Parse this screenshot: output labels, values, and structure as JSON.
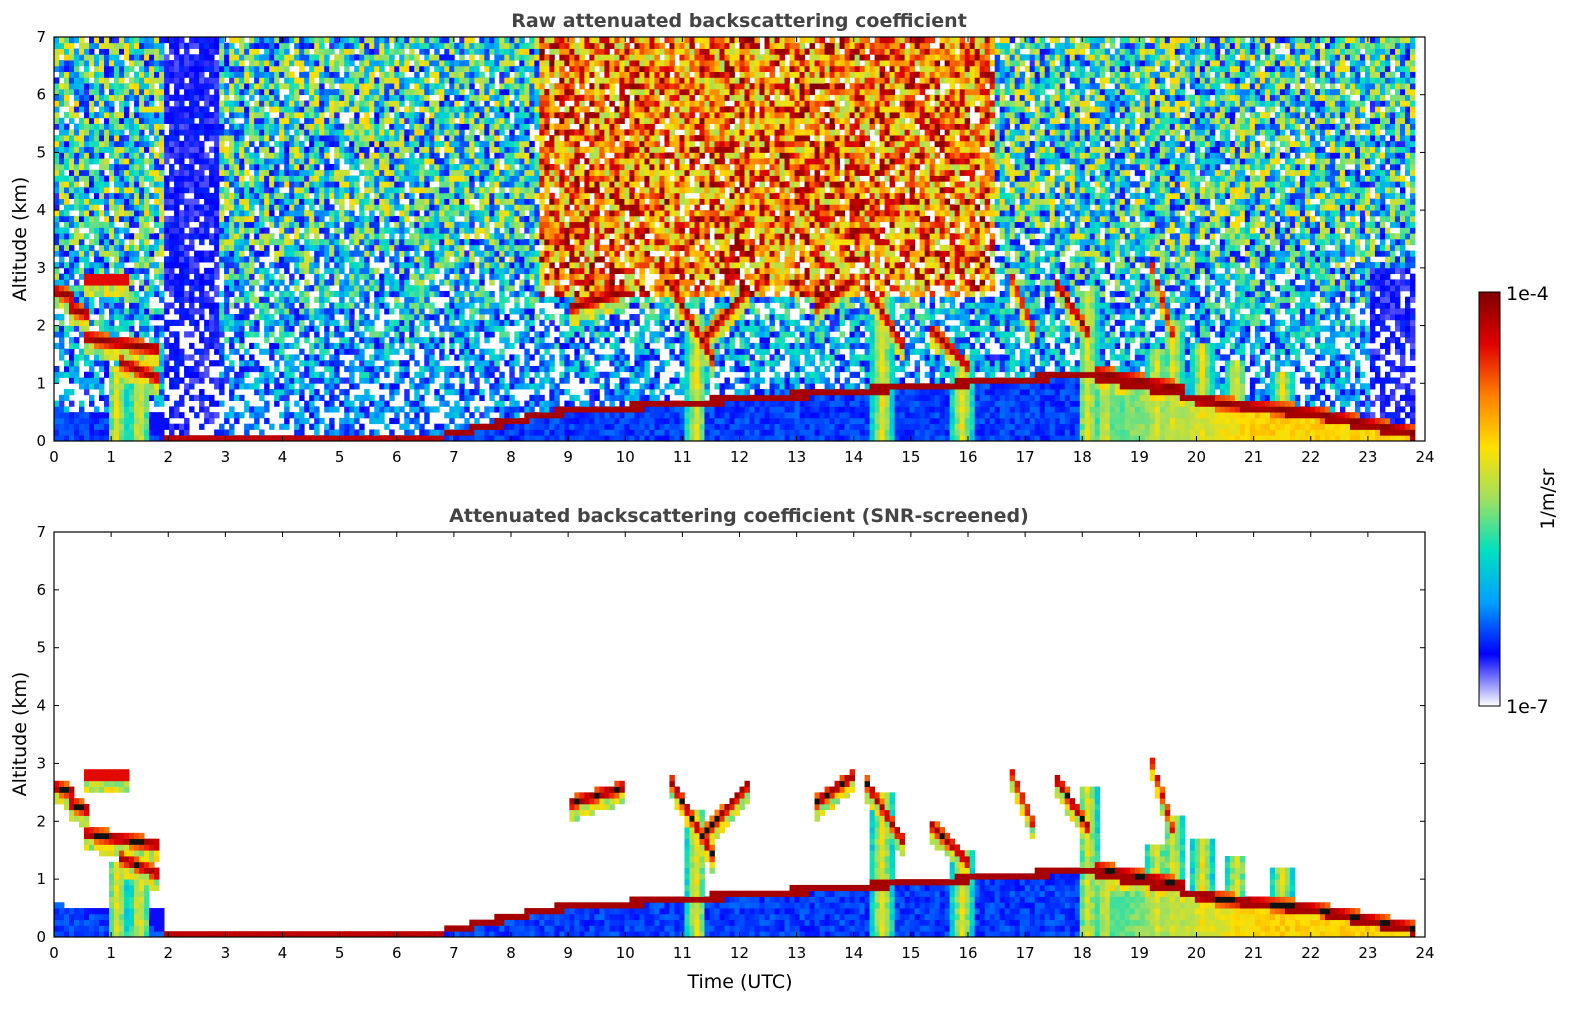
{
  "chart_data": [
    {
      "type": "heatmap",
      "title": "Raw attenuated backscattering coefficient",
      "xlabel": "",
      "ylabel": "Altitude (km)",
      "xlim": [
        0,
        24
      ],
      "ylim": [
        0,
        7
      ],
      "x_ticks": [
        "0",
        "1",
        "2",
        "3",
        "4",
        "5",
        "6",
        "7",
        "8",
        "9",
        "10",
        "11",
        "12",
        "13",
        "14",
        "15",
        "16",
        "17",
        "18",
        "19",
        "20",
        "21",
        "22",
        "23",
        "24"
      ],
      "y_ticks": [
        "0",
        "1",
        "2",
        "3",
        "4",
        "5",
        "6",
        "7"
      ],
      "screened": false,
      "features": {
        "boundary_layer_top_km": [
          {
            "t": 0.0,
            "h": 0.6
          },
          {
            "t": 1.9,
            "h": 0.1
          },
          {
            "t": 6.8,
            "h": 0.1
          },
          {
            "t": 8.8,
            "h": 0.5
          },
          {
            "t": 18.0,
            "h": 1.15
          },
          {
            "t": 19.0,
            "h": 0.95
          },
          {
            "t": 20.5,
            "h": 0.65
          },
          {
            "t": 22.0,
            "h": 0.45
          },
          {
            "t": 23.8,
            "h": 0.1
          }
        ],
        "cloud_layers": [
          {
            "t0": 0.0,
            "t1": 0.35,
            "h0": 2.6,
            "h1": 2.5,
            "strength": 1.0
          },
          {
            "t0": 0.3,
            "t1": 0.6,
            "h0": 2.3,
            "h1": 2.2,
            "strength": 1.0
          },
          {
            "t0": 0.5,
            "t1": 1.3,
            "h0": 2.8,
            "h1": 2.8,
            "strength": 0.8
          },
          {
            "t0": 0.5,
            "t1": 1.8,
            "h0": 1.8,
            "h1": 1.6,
            "strength": 1.0
          },
          {
            "t0": 1.1,
            "t1": 1.8,
            "h0": 1.4,
            "h1": 1.1,
            "strength": 0.9
          },
          {
            "t0": 9.0,
            "t1": 10.0,
            "h0": 2.3,
            "h1": 2.6,
            "strength": 1.0
          },
          {
            "t0": 10.8,
            "t1": 11.6,
            "h0": 2.7,
            "h1": 1.3,
            "strength": 1.0
          },
          {
            "t0": 11.4,
            "t1": 12.2,
            "h0": 1.8,
            "h1": 2.7,
            "strength": 1.0
          },
          {
            "t0": 13.3,
            "t1": 14.0,
            "h0": 2.3,
            "h1": 2.8,
            "strength": 1.0
          },
          {
            "t0": 14.2,
            "t1": 14.9,
            "h0": 2.7,
            "h1": 1.6,
            "strength": 0.9
          },
          {
            "t0": 15.3,
            "t1": 16.0,
            "h0": 2.0,
            "h1": 1.3,
            "strength": 0.9
          },
          {
            "t0": 16.7,
            "t1": 17.2,
            "h0": 3.0,
            "h1": 1.8,
            "strength": 0.6
          },
          {
            "t0": 17.5,
            "t1": 18.1,
            "h0": 2.8,
            "h1": 1.9,
            "strength": 1.0
          },
          {
            "t0": 18.2,
            "t1": 19.8,
            "h0": 1.2,
            "h1": 0.9,
            "strength": 1.0
          },
          {
            "t0": 19.2,
            "t1": 19.6,
            "h0": 3.1,
            "h1": 1.8,
            "strength": 0.6
          },
          {
            "t0": 20.0,
            "t1": 22.0,
            "h0": 0.7,
            "h1": 0.5,
            "strength": 1.0
          },
          {
            "t0": 22.0,
            "t1": 23.8,
            "h0": 0.5,
            "h1": 0.15,
            "strength": 1.0
          }
        ],
        "precipitation_columns": [
          {
            "t": 1.1,
            "top_km": 1.3
          },
          {
            "t": 1.5,
            "top_km": 1.2
          },
          {
            "t": 11.25,
            "top_km": 2.2
          },
          {
            "t": 14.5,
            "top_km": 2.5
          },
          {
            "t": 15.9,
            "top_km": 1.5
          },
          {
            "t": 18.1,
            "top_km": 2.6
          },
          {
            "t": 18.4,
            "top_km": 1.2
          },
          {
            "t": 19.3,
            "top_km": 1.6
          },
          {
            "t": 19.6,
            "top_km": 2.1
          },
          {
            "t": 20.1,
            "top_km": 1.7
          },
          {
            "t": 20.7,
            "top_km": 1.4
          },
          {
            "t": 21.5,
            "top_km": 1.2
          }
        ]
      }
    },
    {
      "type": "heatmap",
      "title": "Attenuated backscattering coefficient (SNR-screened)",
      "xlabel": "Time (UTC)",
      "ylabel": "Altitude (km)",
      "xlim": [
        0,
        24
      ],
      "ylim": [
        0,
        7
      ],
      "x_ticks": [
        "0",
        "1",
        "2",
        "3",
        "4",
        "5",
        "6",
        "7",
        "8",
        "9",
        "10",
        "11",
        "12",
        "13",
        "14",
        "15",
        "16",
        "17",
        "18",
        "19",
        "20",
        "21",
        "22",
        "23",
        "24"
      ],
      "y_ticks": [
        "0",
        "1",
        "2",
        "3",
        "4",
        "5",
        "6",
        "7"
      ],
      "screened": true
    }
  ],
  "colorbar": {
    "label": "1/m/sr",
    "max_label": "1e-4",
    "min_label": "1e-7",
    "scale": "log",
    "colormap": [
      "#ffffff",
      "#0000ff",
      "#00a0ff",
      "#00e0c0",
      "#a0e060",
      "#ffe000",
      "#ff8000",
      "#e00000",
      "#800000"
    ]
  }
}
